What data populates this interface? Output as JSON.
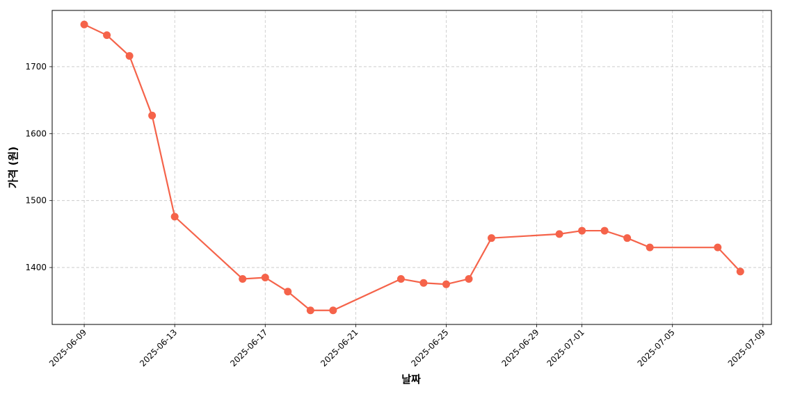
{
  "chart_data": {
    "type": "line",
    "xlabel": "날짜",
    "ylabel": "가격 (원)",
    "x": [
      "2025-06-09",
      "2025-06-10",
      "2025-06-11",
      "2025-06-12",
      "2025-06-13",
      "2025-06-16",
      "2025-06-17",
      "2025-06-18",
      "2025-06-19",
      "2025-06-20",
      "2025-06-23",
      "2025-06-24",
      "2025-06-25",
      "2025-06-26",
      "2025-06-27",
      "2025-06-30",
      "2025-07-01",
      "2025-07-02",
      "2025-07-03",
      "2025-07-04",
      "2025-07-07",
      "2025-07-08"
    ],
    "series": [
      {
        "color": "#f5634a",
        "values": [
          1763,
          1747,
          1716,
          1627,
          1476,
          1383,
          1385,
          1364,
          1336,
          1336,
          1383,
          1377,
          1375,
          1383,
          1444,
          1450,
          1455,
          1455,
          1444,
          1430,
          1430,
          1394
        ]
      }
    ],
    "xlim": [
      "2025-06-07T14:00:00Z",
      "2025-07-09T09:00:00Z"
    ],
    "xticks": [
      "2025-06-09",
      "2025-06-13",
      "2025-06-17",
      "2025-06-21",
      "2025-06-25",
      "2025-06-29",
      "2025-07-01",
      "2025-07-05",
      "2025-07-09"
    ],
    "ylim": [
      1315,
      1784
    ],
    "yticks": [
      1400,
      1500,
      1600,
      1700
    ],
    "grid": true
  }
}
